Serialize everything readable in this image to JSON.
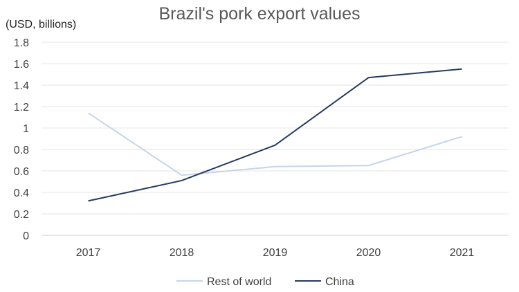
{
  "chart_data": {
    "type": "line",
    "title": "Brazil's pork export values",
    "unit_label": "(USD, billions)",
    "categories": [
      "2017",
      "2018",
      "2019",
      "2020",
      "2021"
    ],
    "ylim": [
      0,
      1.8
    ],
    "yticks": [
      0,
      0.2,
      0.4,
      0.6,
      0.8,
      1,
      1.2,
      1.4,
      1.6,
      1.8
    ],
    "grid": true,
    "legend_position": "bottom",
    "series": [
      {
        "name": "Rest of world",
        "color": "#c5d5ea",
        "values": [
          1.14,
          0.56,
          0.64,
          0.65,
          0.92
        ]
      },
      {
        "name": "China",
        "color": "#243b5c",
        "values": [
          0.32,
          0.51,
          0.84,
          1.47,
          1.55
        ]
      }
    ]
  }
}
